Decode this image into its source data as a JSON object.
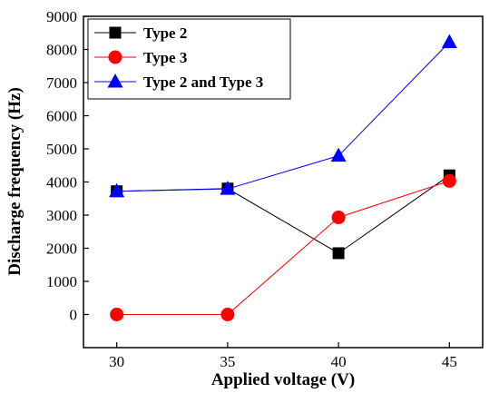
{
  "chart_data": {
    "type": "line",
    "xlabel": "Applied voltage (V)",
    "ylabel": "Discharge frequency (Hz)",
    "x": [
      30,
      35,
      40,
      45
    ],
    "xticks": [
      "30",
      "35",
      "40",
      "45"
    ],
    "yticks": [
      "0",
      "1000",
      "2000",
      "3000",
      "4000",
      "5000",
      "6000",
      "7000",
      "8000",
      "9000"
    ],
    "xlim": [
      28.5,
      46.5
    ],
    "ylim": [
      -1000,
      9000
    ],
    "grid": false,
    "legend_position": "top-left",
    "series": [
      {
        "name": "Type 2",
        "values": [
          3720,
          3800,
          1850,
          4200
        ],
        "color": "#000000",
        "marker": "square"
      },
      {
        "name": "Type 3",
        "values": [
          0,
          0,
          2930,
          4030
        ],
        "color": "#ff0000",
        "marker": "circle"
      },
      {
        "name": "Type 2 and Type 3",
        "values": [
          3720,
          3790,
          4790,
          8220
        ],
        "color": "#0000ff",
        "marker": "triangle"
      }
    ]
  }
}
